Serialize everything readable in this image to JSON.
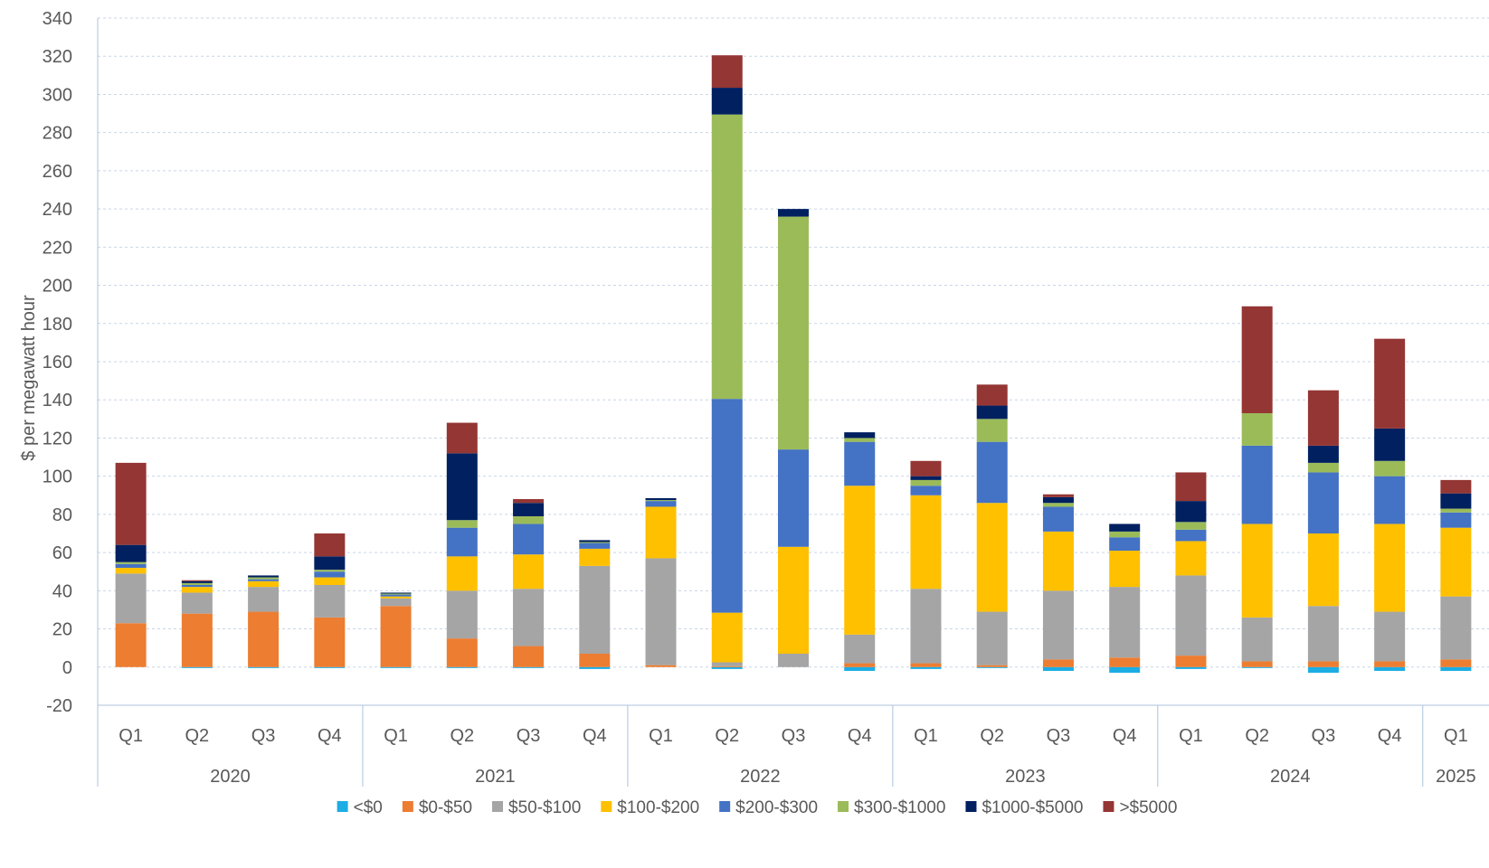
{
  "chart_data": {
    "type": "bar",
    "stacked": true,
    "ylabel": "$ per megawatt hour",
    "ylim": [
      -20,
      340
    ],
    "ytick_step": 20,
    "grid": "horizontal-dashed",
    "legend_position": "bottom",
    "quarters": [
      "Q1",
      "Q2",
      "Q3",
      "Q4",
      "Q1",
      "Q2",
      "Q3",
      "Q4",
      "Q1",
      "Q2",
      "Q3",
      "Q4",
      "Q1",
      "Q2",
      "Q3",
      "Q4",
      "Q1",
      "Q2",
      "Q3",
      "Q4",
      "Q1"
    ],
    "years": [
      {
        "label": "2020",
        "count": 4
      },
      {
        "label": "2021",
        "count": 4
      },
      {
        "label": "2022",
        "count": 4
      },
      {
        "label": "2023",
        "count": 4
      },
      {
        "label": "2024",
        "count": 4
      },
      {
        "label": "2025",
        "count": 1
      }
    ],
    "series": [
      {
        "name": "<$0",
        "color": "#1CADE4",
        "values": [
          0,
          -0.5,
          -0.5,
          -0.5,
          -0.5,
          -0.5,
          -0.5,
          -1,
          0,
          -1,
          0,
          -2,
          -1,
          -0.5,
          -2,
          -3,
          -1,
          -0.5,
          -3,
          -2,
          -2
        ]
      },
      {
        "name": "$0-$50",
        "color": "#ED7D31",
        "values": [
          23,
          28,
          29,
          26,
          32,
          15,
          11,
          7,
          1,
          0.5,
          0,
          2,
          2,
          1,
          4,
          5,
          6,
          3,
          3,
          3,
          4
        ]
      },
      {
        "name": "$50-$100",
        "color": "#A5A5A5",
        "values": [
          26,
          11,
          13,
          17,
          4,
          25,
          30,
          46,
          56,
          2,
          7,
          15,
          39,
          28,
          36,
          37,
          42,
          23,
          29,
          26,
          33
        ]
      },
      {
        "name": "$100-$200",
        "color": "#FFC000",
        "values": [
          3,
          3,
          3,
          4,
          1,
          18,
          18,
          9,
          27,
          26,
          56,
          78,
          49,
          57,
          31,
          19,
          18,
          49,
          38,
          46,
          36
        ]
      },
      {
        "name": "$200-$300",
        "color": "#4472C4",
        "values": [
          2,
          1,
          1,
          3,
          1,
          15,
          16,
          3,
          3,
          112,
          51,
          23,
          5,
          32,
          13,
          7,
          6,
          41,
          32,
          25,
          8
        ]
      },
      {
        "name": "$300-$1000",
        "color": "#9BBB59",
        "values": [
          1,
          1,
          1,
          1,
          0.5,
          4,
          4,
          0.5,
          0.5,
          149,
          122,
          2,
          3,
          12,
          2,
          3,
          4,
          17,
          5,
          8,
          2
        ]
      },
      {
        "name": "$1000-$5000",
        "color": "#002060",
        "values": [
          9,
          1,
          1,
          7,
          0.5,
          35,
          7,
          1,
          1,
          14,
          4,
          3,
          2,
          7,
          3,
          4,
          11,
          0,
          9,
          17,
          8
        ]
      },
      {
        "name": ">$5000",
        "color": "#943634",
        "values": [
          43,
          0.5,
          0,
          12,
          0,
          16,
          2,
          0,
          0,
          17,
          0,
          0,
          8,
          11,
          1.5,
          0,
          15,
          56,
          29,
          47,
          7
        ]
      }
    ]
  }
}
